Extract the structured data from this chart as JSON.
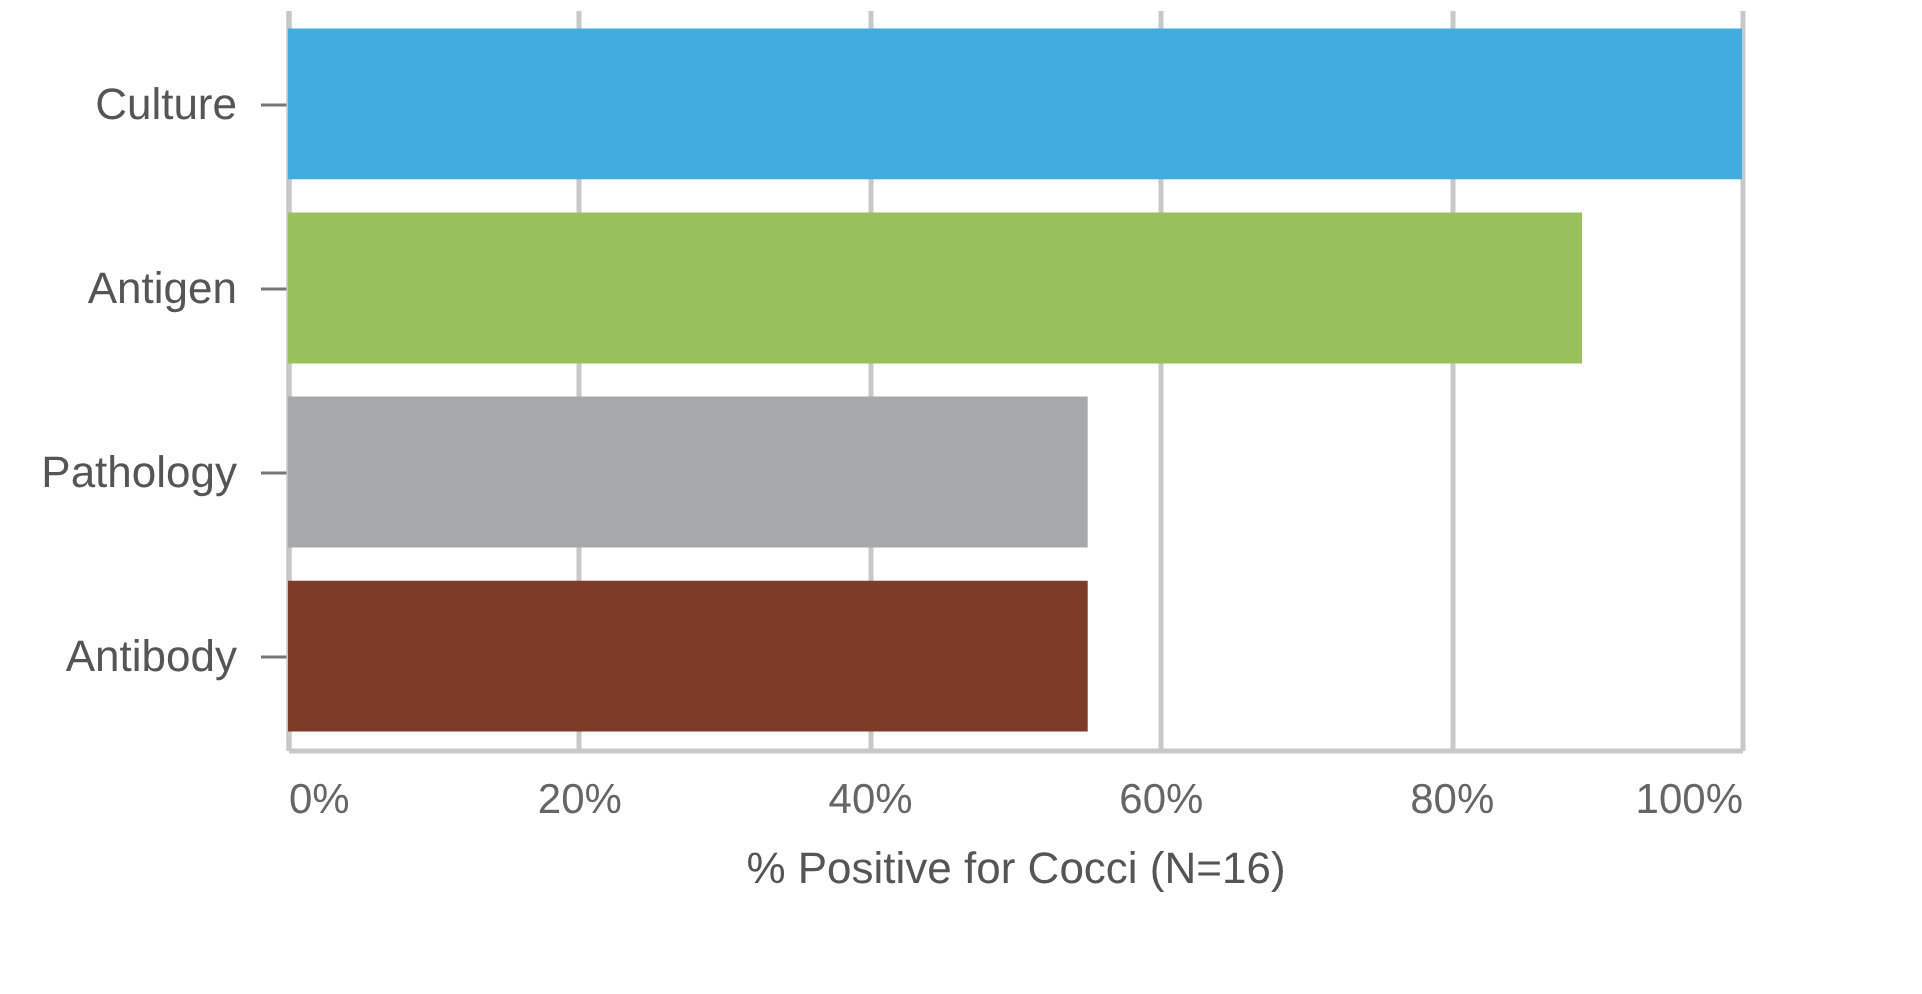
{
  "chart_data": {
    "type": "bar",
    "orientation": "horizontal",
    "xlabel": "% Positive for Cocci (N=16)",
    "categories": [
      "Culture",
      "Antigen",
      "Pathology",
      "Antibody"
    ],
    "values": [
      100,
      89,
      55,
      55
    ],
    "colors": [
      "#41acdd",
      "#98c15c",
      "#a6a9ab",
      "#7d3c27"
    ],
    "xlim": [
      0,
      100
    ],
    "xticks": [
      {
        "value": 0,
        "label": "0%"
      },
      {
        "value": 20,
        "label": "20%"
      },
      {
        "value": 40,
        "label": "40%"
      },
      {
        "value": 60,
        "label": "60%"
      },
      {
        "value": 80,
        "label": "80%"
      },
      {
        "value": 100,
        "label": "100%"
      }
    ],
    "grid": "x"
  }
}
